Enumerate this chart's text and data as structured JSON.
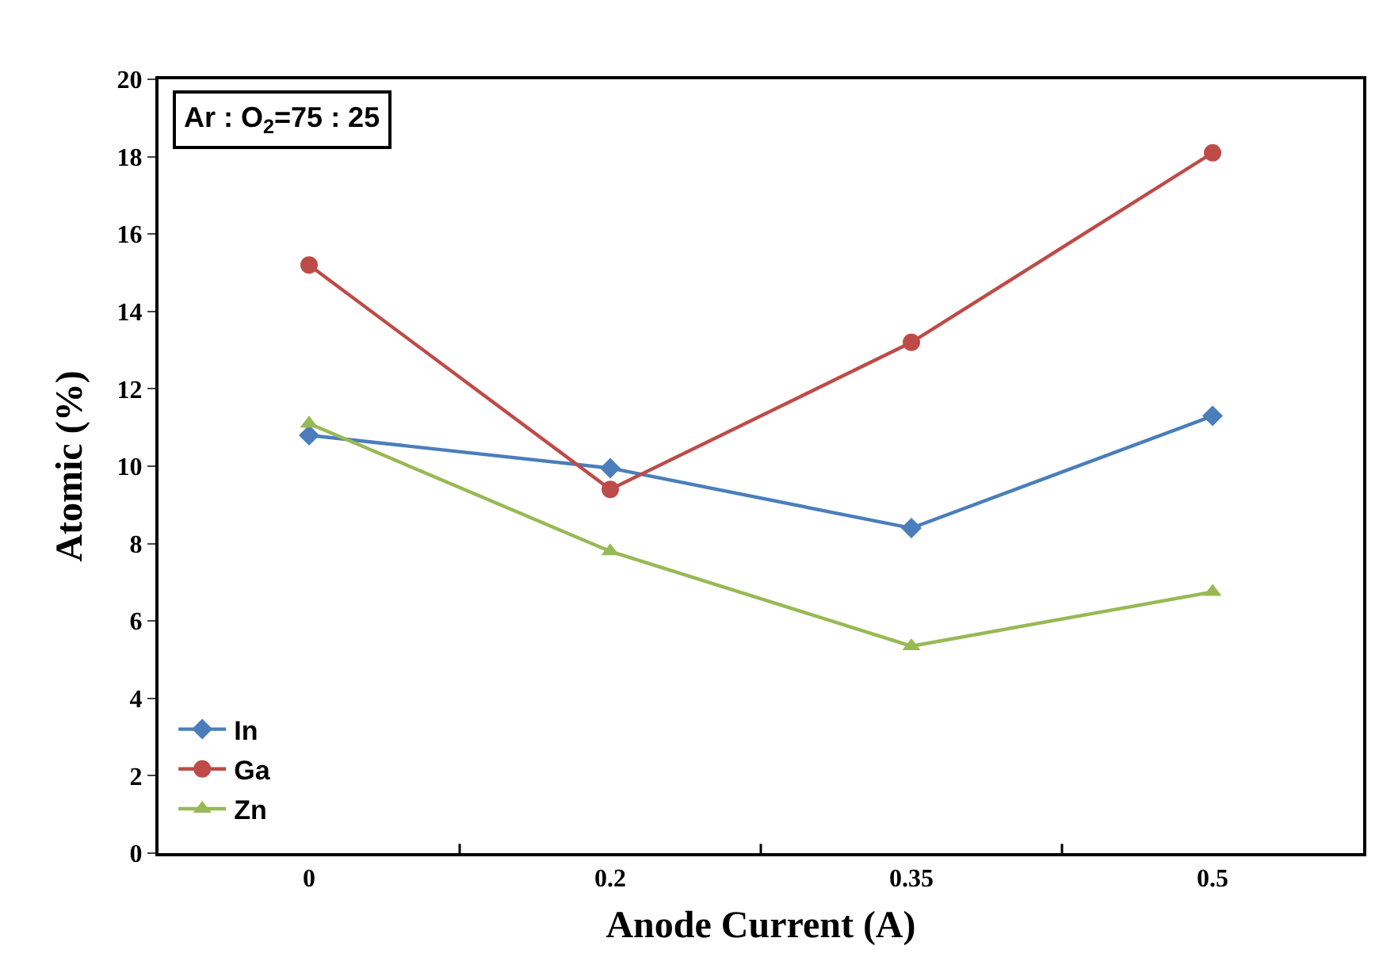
{
  "chart_data": {
    "type": "line",
    "xlabel": "Anode Current (A)",
    "ylabel": "Atomic (%)",
    "categories": [
      "0",
      "0.2",
      "0.35",
      "0.5"
    ],
    "series": [
      {
        "name": "In",
        "color": "#4a7ebb",
        "marker": "diamond",
        "values": [
          10.8,
          9.95,
          8.4,
          11.3
        ]
      },
      {
        "name": "Ga",
        "color": "#be4b48",
        "marker": "circle",
        "values": [
          15.2,
          9.4,
          13.2,
          18.1
        ]
      },
      {
        "name": "Zn",
        "color": "#98b954",
        "marker": "triangle",
        "values": [
          11.1,
          7.8,
          5.35,
          6.75
        ]
      }
    ],
    "ylim": [
      0,
      20
    ],
    "yticks": [
      0,
      2,
      4,
      6,
      8,
      10,
      12,
      14,
      16,
      18,
      20
    ],
    "annotations": [
      "Ar : O$_{2}$=75 : 25"
    ],
    "legend": "bottom left",
    "line_style": "solid"
  }
}
